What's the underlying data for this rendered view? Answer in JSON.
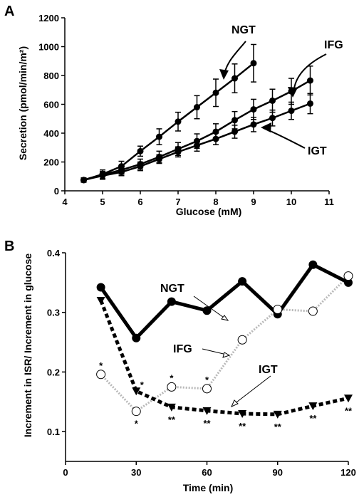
{
  "chart_data": [
    {
      "type": "line",
      "panel_label": "A",
      "xlabel": "Glucose (mM)",
      "ylabel": "Secretion (pmol/min/m²)",
      "xlim": [
        4,
        11
      ],
      "ylim": [
        0,
        1200
      ],
      "xticks": [
        "4",
        "5",
        "6",
        "7",
        "8",
        "9",
        "10",
        "11"
      ],
      "yticks": [
        "0",
        "200",
        "400",
        "600",
        "800",
        "1000",
        "1200"
      ],
      "grid": false,
      "series": [
        {
          "name": "NGT",
          "x": [
            4.5,
            5.0,
            5.5,
            6.0,
            6.5,
            7.0,
            7.5,
            8.0,
            8.5,
            9.0
          ],
          "y": [
            75,
            115,
            170,
            275,
            375,
            480,
            580,
            680,
            780,
            885
          ],
          "err": [
            15,
            30,
            35,
            35,
            55,
            65,
            80,
            95,
            100,
            130
          ]
        },
        {
          "name": "IFG",
          "x": [
            4.5,
            5.0,
            5.5,
            6.0,
            6.5,
            7.0,
            7.5,
            8.0,
            8.5,
            9.0,
            9.5,
            10.0,
            10.5
          ],
          "y": [
            75,
            110,
            145,
            185,
            235,
            290,
            345,
            410,
            490,
            565,
            625,
            690,
            765
          ],
          "err": [
            15,
            25,
            30,
            35,
            40,
            45,
            50,
            55,
            60,
            70,
            80,
            90,
            100
          ]
        },
        {
          "name": "IGT",
          "x": [
            4.5,
            5.0,
            5.5,
            6.0,
            6.5,
            7.0,
            7.5,
            8.0,
            8.5,
            9.0,
            9.5,
            10.0,
            10.5
          ],
          "y": [
            75,
            105,
            130,
            170,
            220,
            270,
            315,
            360,
            410,
            460,
            505,
            555,
            605
          ],
          "err": [
            15,
            25,
            25,
            30,
            30,
            35,
            40,
            40,
            45,
            50,
            55,
            60,
            70
          ]
        }
      ],
      "annotations": [
        "NGT",
        "IFG",
        "IGT"
      ]
    },
    {
      "type": "line",
      "panel_label": "B",
      "xlabel": "Time (min)",
      "ylabel": "Increment in ISR/ Increment in glucose",
      "xlim": [
        0,
        120
      ],
      "ylim": [
        0.05,
        0.4
      ],
      "xticks": [
        "0",
        "30",
        "60",
        "90",
        "120"
      ],
      "yticks": [
        "0.1",
        "0.2",
        "0.3",
        "0.4"
      ],
      "grid": false,
      "series": [
        {
          "name": "NGT",
          "x": [
            15,
            30,
            45,
            60,
            75,
            90,
            105,
            120
          ],
          "y": [
            0.342,
            0.257,
            0.318,
            0.303,
            0.352,
            0.297,
            0.38,
            0.35
          ]
        },
        {
          "name": "IFG",
          "x": [
            15,
            30,
            45,
            60,
            75,
            90,
            105,
            120
          ],
          "y": [
            0.196,
            0.134,
            0.175,
            0.172,
            0.254,
            0.305,
            0.302,
            0.361
          ],
          "markers": [
            "*",
            "*",
            "*",
            "*",
            "",
            "",
            "",
            ""
          ]
        },
        {
          "name": "IGT",
          "x": [
            15,
            30,
            45,
            60,
            75,
            90,
            105,
            120
          ],
          "y": [
            0.32,
            0.168,
            0.141,
            0.135,
            0.13,
            0.129,
            0.143,
            0.156
          ],
          "markers": [
            "",
            "*",
            "**",
            "**",
            "**",
            "**",
            "**",
            "**"
          ]
        }
      ],
      "annotations": [
        "NGT",
        "IFG",
        "IGT"
      ]
    }
  ]
}
